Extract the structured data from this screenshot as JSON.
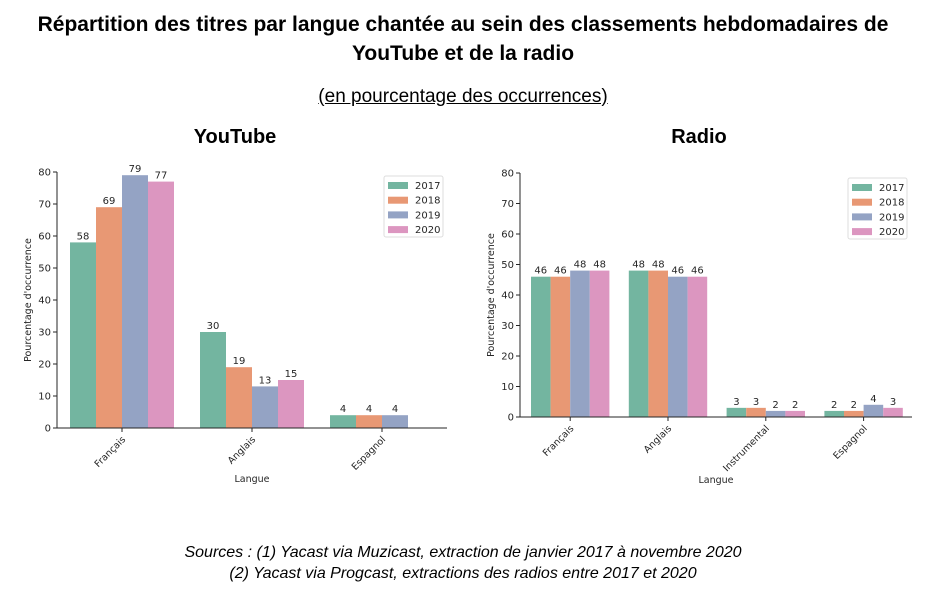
{
  "title": "Répartition des titres par langue chantée au sein des classements hebdomadaires de YouTube et de la radio",
  "subtitle": "(en pourcentage des occurrences)",
  "sources": [
    "Sources : (1) Yacast via Muzicast, extraction de janvier 2017 à novembre 2020",
    "(2) Yacast via Progcast, extractions des radios entre 2017 et 2020"
  ],
  "colors": {
    "2017": "#73b5a0",
    "2018": "#e89874",
    "2019": "#94a3c4",
    "2020": "#dc96c0"
  },
  "chart_data": [
    {
      "type": "bar",
      "title": "YouTube",
      "xlabel": "Langue",
      "ylabel": "Pourcentage d'occurrence",
      "ylim": [
        0,
        80
      ],
      "yticks": [
        "0",
        "10",
        "20",
        "30",
        "40",
        "50",
        "60",
        "70",
        "80"
      ],
      "legend": "top-right",
      "categories": [
        "Français",
        "Anglais",
        "Espagnol"
      ],
      "series": [
        {
          "name": "2017",
          "values": [
            58,
            30,
            4
          ]
        },
        {
          "name": "2018",
          "values": [
            69,
            19,
            4
          ]
        },
        {
          "name": "2019",
          "values": [
            79,
            13,
            4
          ]
        },
        {
          "name": "2020",
          "values": [
            77,
            15,
            null
          ]
        }
      ]
    },
    {
      "type": "bar",
      "title": "Radio",
      "xlabel": "Langue",
      "ylabel": "Pourcentage d'occurrence",
      "ylim": [
        0,
        80
      ],
      "yticks": [
        "0",
        "10",
        "20",
        "30",
        "40",
        "50",
        "60",
        "70",
        "80"
      ],
      "legend": "top-right",
      "categories": [
        "Français",
        "Anglais",
        "Instrumental",
        "Espagnol"
      ],
      "series": [
        {
          "name": "2017",
          "values": [
            46,
            48,
            3,
            2
          ]
        },
        {
          "name": "2018",
          "values": [
            46,
            48,
            3,
            2
          ]
        },
        {
          "name": "2019",
          "values": [
            48,
            46,
            2,
            4
          ]
        },
        {
          "name": "2020",
          "values": [
            48,
            46,
            2,
            3
          ]
        }
      ]
    }
  ]
}
